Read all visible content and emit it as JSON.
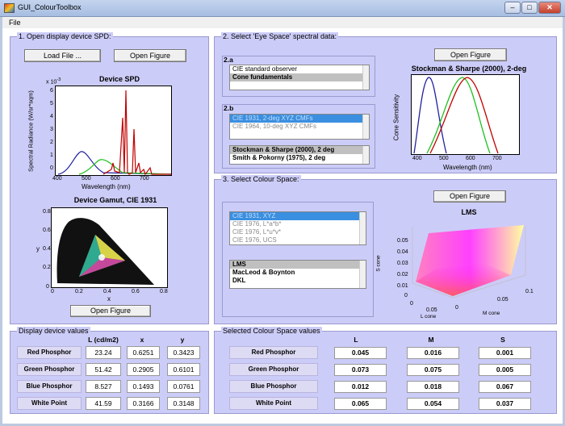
{
  "window": {
    "title": "GUI_ColourToolbox",
    "min": "–",
    "max": "□",
    "close": "✕"
  },
  "menu": {
    "file": "File"
  },
  "panel1": {
    "title": "1. Open display device SPD:",
    "load_button": "Load File ...",
    "open_button": "Open Figure",
    "spd_chart": {
      "title": "Device SPD",
      "ylabel": "Spectral Radiance (W/sr*sqm)",
      "xlabel": "Wavelength (nm)",
      "yexp": "x 10",
      "yexp_sup": "-3",
      "xticks": [
        "400",
        "500",
        "600",
        "700"
      ],
      "yticks": [
        "0",
        "1",
        "2",
        "3",
        "4",
        "5",
        "6",
        "7"
      ]
    },
    "gamut_chart": {
      "title": "Device Gamut, CIE 1931",
      "xlabel": "x",
      "ylabel": "y",
      "xticks": [
        "0",
        "0.2",
        "0.4",
        "0.6",
        "0.8"
      ],
      "yticks": [
        "0",
        "0.2",
        "0.4",
        "0.6",
        "0.8"
      ]
    },
    "open_button2": "Open Figure"
  },
  "panel2": {
    "title": "2. Select 'Eye Space' spectral data:",
    "group_a": "2.a",
    "list_a": [
      "CIE standard observer",
      "Cone fundamentals"
    ],
    "group_b": "2.b",
    "list_b1": [
      "CIE 1931, 2-deg XYZ CMFs",
      "CIE 1964, 10-deg XYZ CMFs"
    ],
    "list_b2": [
      "Stockman & Sharpe (2000), 2 deg",
      "Smith & Pokorny (1975), 2 deg"
    ],
    "open_button": "Open Figure",
    "cone_chart": {
      "title": "Stockman & Sharpe (2000), 2-deg",
      "ylabel": "Cone Sensitivity",
      "xlabel": "Wavelength (nm)",
      "xticks": [
        "400",
        "500",
        "600",
        "700"
      ]
    }
  },
  "panel3": {
    "title": "3. Select Colour Space:",
    "list1": [
      "CIE 1931, XYZ",
      "CIE 1976, L*a*b*",
      "CIE 1976, L*u*v*",
      "CIE 1976, UCS"
    ],
    "list2": [
      "LMS",
      "MacLeod & Boynton",
      "DKL"
    ],
    "open_button": "Open Figure",
    "lms_chart": {
      "title": "LMS",
      "zlabel": "S cone",
      "xlabel": "L cone",
      "ylabel": "M cone",
      "zticks": [
        "0.05",
        "0.04",
        "0.03",
        "0.02",
        "0.01",
        "0"
      ],
      "xticks": [
        "0",
        "0.05"
      ],
      "yticks": [
        "0",
        "0.05",
        "0.1"
      ],
      "xticks2": [
        "0.1"
      ]
    }
  },
  "device_values": {
    "title": "Display device values",
    "headers": [
      "L (cd/m2)",
      "x",
      "y"
    ],
    "rows": [
      {
        "label": "Red Phosphor",
        "L": "23.24",
        "x": "0.6251",
        "y": "0.3423"
      },
      {
        "label": "Green Phosphor",
        "L": "51.42",
        "x": "0.2905",
        "y": "0.6101"
      },
      {
        "label": "Blue Phosphor",
        "L": "8.527",
        "x": "0.1493",
        "y": "0.0761"
      },
      {
        "label": "White Point",
        "L": "41.59",
        "x": "0.3166",
        "y": "0.3148"
      }
    ]
  },
  "space_values": {
    "title": "Selected Colour Space values",
    "headers": [
      "L",
      "M",
      "S"
    ],
    "rows": [
      {
        "label": "Red Phosphor",
        "L": "0.045",
        "M": "0.016",
        "S": "0.001"
      },
      {
        "label": "Green Phosphor",
        "L": "0.073",
        "M": "0.075",
        "S": "0.005"
      },
      {
        "label": "Blue Phosphor",
        "L": "0.012",
        "M": "0.018",
        "S": "0.067"
      },
      {
        "label": "White Point",
        "L": "0.065",
        "M": "0.054",
        "S": "0.037"
      }
    ]
  },
  "colors": {
    "panel": "#ccccf8",
    "list_highlight": "#3a8fe0",
    "red": "#c00000",
    "green": "#20c020",
    "blue": "#2020a0"
  }
}
